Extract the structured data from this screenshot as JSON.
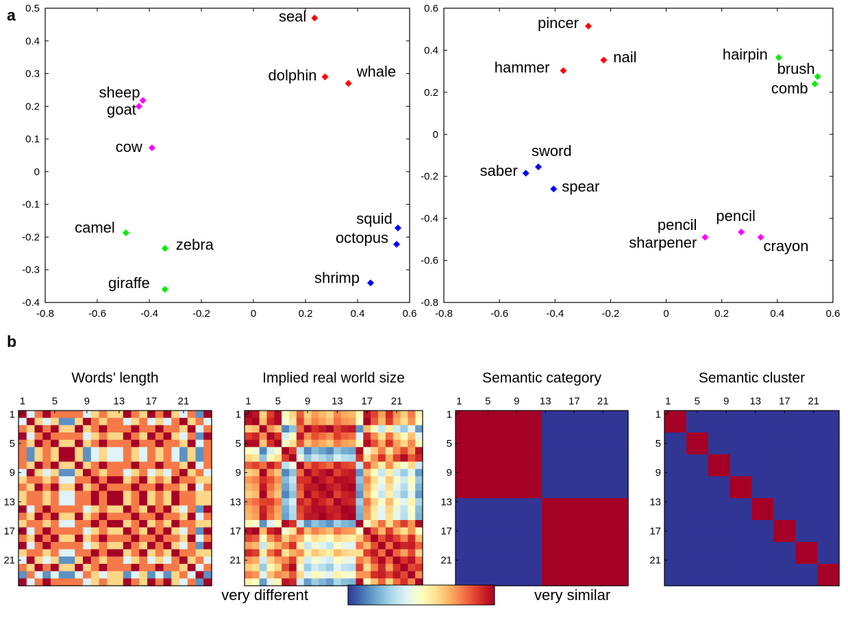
{
  "panel_labels": [
    "a",
    "b"
  ],
  "colorbar": {
    "left_label": "very different",
    "right_label": "very similar"
  },
  "chart_data": [
    {
      "type": "scatter",
      "xlim": [
        -0.8,
        0.6
      ],
      "ylim": [
        -0.4,
        0.5
      ],
      "xticks": [
        "-0.8",
        "-0.6",
        "-0.4",
        "-0.2",
        "0",
        "0.2",
        "0.4",
        "0.6"
      ],
      "yticks": [
        "-0.4",
        "-0.3",
        "-0.2",
        "-0.1",
        "0",
        "0.1",
        "0.2",
        "0.3",
        "0.4",
        "0.5"
      ],
      "grid": false,
      "points": [
        {
          "label": "seal",
          "x": 0.235,
          "y": 0.47,
          "color": "#ff0000"
        },
        {
          "label": "dolphin",
          "x": 0.275,
          "y": 0.29,
          "color": "#ff0000"
        },
        {
          "label": "whale",
          "x": 0.365,
          "y": 0.27,
          "color": "#ff0000"
        },
        {
          "label": "sheep",
          "x": -0.425,
          "y": 0.218,
          "color": "#ff00ff"
        },
        {
          "label": "goat",
          "x": -0.44,
          "y": 0.2,
          "color": "#ff00ff"
        },
        {
          "label": "cow",
          "x": -0.39,
          "y": 0.073,
          "color": "#ff00ff"
        },
        {
          "label": "camel",
          "x": -0.49,
          "y": -0.187,
          "color": "#00ee00"
        },
        {
          "label": "zebra",
          "x": -0.34,
          "y": -0.235,
          "color": "#00ee00"
        },
        {
          "label": "giraffe",
          "x": -0.34,
          "y": -0.36,
          "color": "#00ee00"
        },
        {
          "label": "squid",
          "x": 0.555,
          "y": -0.172,
          "color": "#0000ff"
        },
        {
          "label": "octopus",
          "x": 0.55,
          "y": -0.222,
          "color": "#0000ff"
        },
        {
          "label": "shrimp",
          "x": 0.45,
          "y": -0.34,
          "color": "#0000ff"
        }
      ]
    },
    {
      "type": "scatter",
      "xlim": [
        -0.8,
        0.6
      ],
      "ylim": [
        -0.8,
        0.6
      ],
      "xticks": [
        "-0.8",
        "-0.6",
        "-0.4",
        "-0.2",
        "0",
        "0.2",
        "0.4",
        "0.6"
      ],
      "yticks": [
        "-0.8",
        "-0.6",
        "-0.4",
        "-0.2",
        "0",
        "0.2",
        "0.4",
        "0.6"
      ],
      "grid": false,
      "points": [
        {
          "label": "pincer",
          "x": -0.28,
          "y": 0.515,
          "color": "#ff0000"
        },
        {
          "label": "nail",
          "x": -0.225,
          "y": 0.353,
          "color": "#ff0000"
        },
        {
          "label": "hammer",
          "x": -0.37,
          "y": 0.303,
          "color": "#ff0000"
        },
        {
          "label": "hairpin",
          "x": 0.405,
          "y": 0.365,
          "color": "#00ee00"
        },
        {
          "label": "brush",
          "x": 0.545,
          "y": 0.275,
          "color": "#00ee00"
        },
        {
          "label": "comb",
          "x": 0.535,
          "y": 0.24,
          "color": "#00ee00"
        },
        {
          "label": "sword",
          "x": -0.46,
          "y": -0.155,
          "color": "#0000ff"
        },
        {
          "label": "saber",
          "x": -0.505,
          "y": -0.185,
          "color": "#0000ff"
        },
        {
          "label": "spear",
          "x": -0.405,
          "y": -0.26,
          "color": "#0000ff"
        },
        {
          "label": "pencil",
          "x": 0.27,
          "y": -0.465,
          "color": "#ff00ff"
        },
        {
          "label": "pencil sharpener",
          "x": 0.14,
          "y": -0.49,
          "color": "#ff00ff"
        },
        {
          "label": "crayon",
          "x": 0.34,
          "y": -0.49,
          "color": "#ff00ff"
        }
      ]
    },
    {
      "type": "heatmap",
      "title": "Words’ length",
      "ticks": [
        "1",
        "5",
        "9",
        "13",
        "17",
        "21"
      ],
      "size": 24,
      "word_lengths": [
        4,
        7,
        5,
        4,
        5,
        3,
        3,
        5,
        7,
        6,
        5,
        6,
        6,
        4,
        5,
        6,
        4,
        5,
        4,
        6,
        7,
        5,
        8,
        4
      ]
    },
    {
      "type": "heatmap",
      "title": "Implied real world size",
      "ticks": [
        "1",
        "5",
        "9",
        "13",
        "17",
        "21"
      ],
      "size": 24,
      "size_scores": [
        0.58,
        0.62,
        0.95,
        0.7,
        0.6,
        0.08,
        0.2,
        0.75,
        0.95,
        0.85,
        0.9,
        0.95,
        0.82,
        0.88,
        0.9,
        0.1,
        0.62,
        0.45,
        0.3,
        0.5,
        0.32,
        0.22,
        0.36,
        0.12
      ]
    },
    {
      "type": "heatmap",
      "title": "Semantic category",
      "ticks": [
        "1",
        "5",
        "9",
        "13",
        "17",
        "21"
      ],
      "size": 24,
      "groups": [
        12,
        12
      ]
    },
    {
      "type": "heatmap",
      "title": "Semantic cluster",
      "ticks": [
        "1",
        "5",
        "9",
        "13",
        "17",
        "21"
      ],
      "size": 24,
      "groups": [
        3,
        3,
        3,
        3,
        3,
        3,
        3,
        3
      ]
    }
  ]
}
